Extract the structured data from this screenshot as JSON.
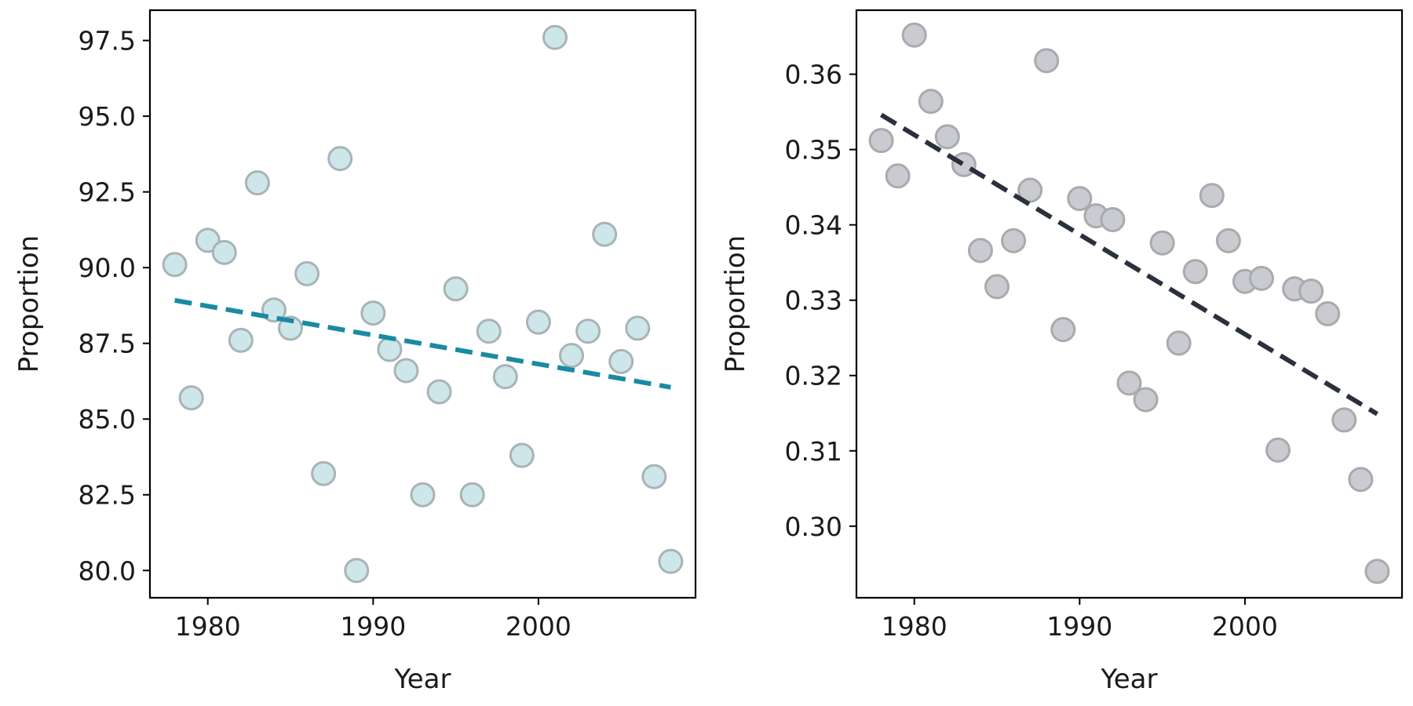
{
  "chart_data": [
    {
      "type": "scatter",
      "xlabel": "Year",
      "ylabel": "Proportion",
      "xlim": [
        1976.5,
        2009.5
      ],
      "ylim": [
        79.1,
        98.5
      ],
      "xticks": [
        "1980",
        "1990",
        "2000"
      ],
      "yticks": [
        "80.0",
        "82.5",
        "85.0",
        "87.5",
        "90.0",
        "92.5",
        "95.0",
        "97.5"
      ],
      "grid": false,
      "colors": {
        "point_fill": "#cde6ea",
        "point_edge": "#a9b3b7",
        "trend": "#1a8aa3"
      },
      "x": [
        1978,
        1979,
        1980,
        1981,
        1982,
        1983,
        1984,
        1985,
        1986,
        1987,
        1988,
        1989,
        1990,
        1991,
        1992,
        1993,
        1994,
        1995,
        1996,
        1997,
        1998,
        1999,
        2000,
        2001,
        2002,
        2003,
        2004,
        2005,
        2006,
        2007,
        2008
      ],
      "y": [
        90.1,
        85.7,
        90.9,
        90.5,
        87.6,
        92.8,
        88.6,
        88.0,
        89.8,
        83.2,
        93.6,
        80.0,
        88.5,
        87.3,
        86.6,
        82.5,
        85.9,
        89.3,
        82.5,
        87.9,
        86.4,
        83.8,
        88.2,
        97.6,
        87.1,
        87.9,
        91.1,
        86.9,
        88.0,
        83.1,
        80.3
      ],
      "trend": {
        "x": [
          1978,
          2008
        ],
        "y": [
          88.92,
          86.05
        ]
      }
    },
    {
      "type": "scatter",
      "xlabel": "Year",
      "ylabel": "Proportion",
      "xlim": [
        1976.5,
        2009.5
      ],
      "ylim": [
        0.2905,
        0.3685
      ],
      "xticks": [
        "1980",
        "1990",
        "2000"
      ],
      "yticks": [
        "0.30",
        "0.31",
        "0.32",
        "0.33",
        "0.34",
        "0.35",
        "0.36"
      ],
      "grid": false,
      "colors": {
        "point_fill": "#cacbd0",
        "point_edge": "#a8aaae",
        "trend": "#2a313d"
      },
      "x": [
        1978,
        1979,
        1980,
        1981,
        1982,
        1983,
        1984,
        1985,
        1986,
        1987,
        1988,
        1989,
        1990,
        1991,
        1992,
        1993,
        1994,
        1995,
        1996,
        1997,
        1998,
        1999,
        2000,
        2001,
        2002,
        2003,
        2004,
        2005,
        2006,
        2007,
        2008
      ],
      "y": [
        0.3512,
        0.3465,
        0.3652,
        0.3564,
        0.3517,
        0.348,
        0.3366,
        0.3318,
        0.3379,
        0.3446,
        0.3618,
        0.3261,
        0.3435,
        0.3412,
        0.3407,
        0.319,
        0.3168,
        0.3376,
        0.3243,
        0.3338,
        0.3439,
        0.3379,
        0.3325,
        0.3329,
        0.3101,
        0.3315,
        0.3312,
        0.3282,
        0.3141,
        0.3062,
        0.294
      ],
      "trend": {
        "x": [
          1978,
          2008
        ],
        "y": [
          0.3546,
          0.3149
        ]
      }
    }
  ]
}
